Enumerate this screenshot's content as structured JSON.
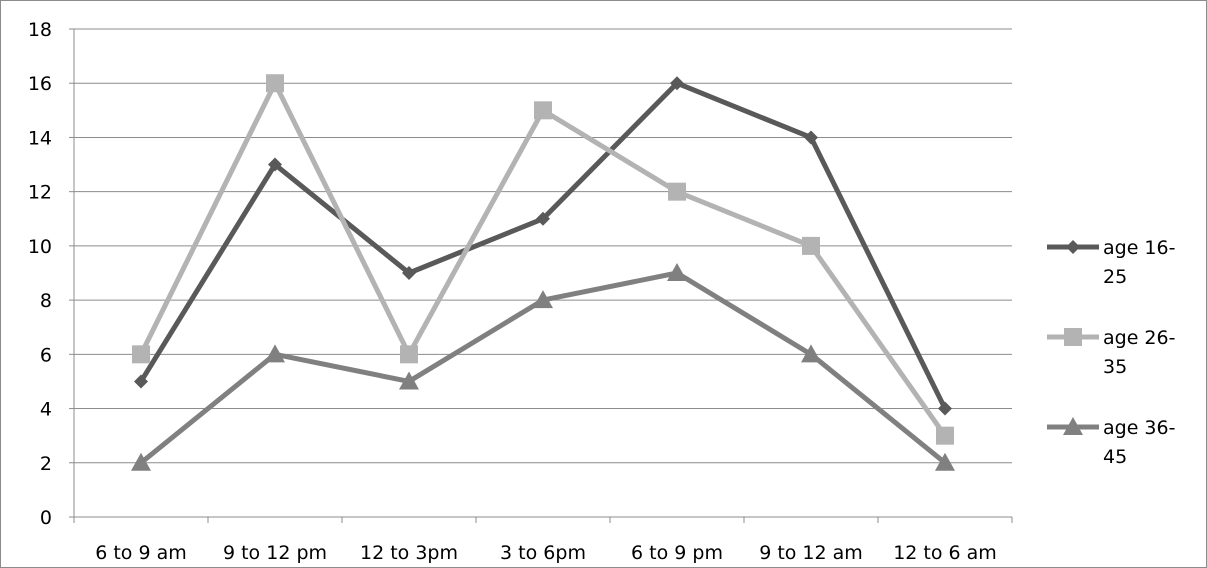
{
  "chart_data": {
    "type": "line",
    "title": "",
    "xlabel": "",
    "ylabel": "",
    "categories": [
      "6 to 9 am",
      "9 to 12 pm",
      "12 to 3pm",
      "3 to 6pm",
      "6 to 9 pm",
      "9 to 12 am",
      "12 to 6 am"
    ],
    "ylim": [
      0,
      18
    ],
    "yticks": [
      "0",
      "2",
      "4",
      "6",
      "8",
      "10",
      "12",
      "14",
      "16",
      "18"
    ],
    "grid": true,
    "legend_position": "right",
    "series": [
      {
        "name": "age 16-25",
        "legend_lines": [
          "age 16-",
          "25"
        ],
        "marker": "diamond",
        "color": "#595959",
        "values": [
          5,
          13,
          9,
          11,
          16,
          14,
          4
        ]
      },
      {
        "name": "age 26-35",
        "legend_lines": [
          "age 26-",
          "35"
        ],
        "marker": "square",
        "color": "#b3b3b3",
        "values": [
          6,
          16,
          6,
          15,
          12,
          10,
          3
        ]
      },
      {
        "name": "age 36-45",
        "legend_lines": [
          "age 36-",
          "45"
        ],
        "marker": "triangle",
        "color": "#808080",
        "values": [
          2,
          6,
          5,
          8,
          9,
          6,
          2
        ]
      }
    ]
  }
}
